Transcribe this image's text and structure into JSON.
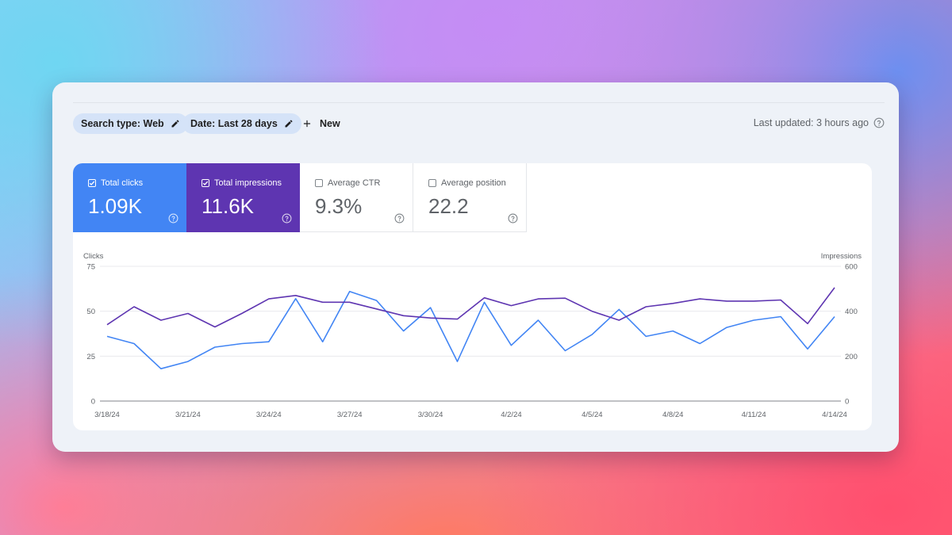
{
  "filters": {
    "search_type": "Search type: Web",
    "date": "Date: Last 28 days",
    "new_label": "New"
  },
  "status": {
    "last_updated": "Last updated: 3 hours ago"
  },
  "metrics": [
    {
      "label": "Total clicks",
      "value": "1.09K",
      "checked": true,
      "color": "#4285f4"
    },
    {
      "label": "Total impressions",
      "value": "11.6K",
      "checked": true,
      "color": "#5e35b1"
    },
    {
      "label": "Average CTR",
      "value": "9.3%",
      "checked": false
    },
    {
      "label": "Average position",
      "value": "22.2",
      "checked": false
    }
  ],
  "icons": {
    "pencil": "pencil-icon",
    "plus": "plus-icon",
    "help": "help-circle-icon",
    "checkbox": "checkbox-icon"
  },
  "chart_data": {
    "type": "line",
    "ylabel": "Clicks",
    "y2label": "Impressions",
    "ylim": [
      0,
      75
    ],
    "y2lim": [
      0,
      600
    ],
    "y_ticks": [
      "0",
      "25",
      "50",
      "75"
    ],
    "y2_ticks": [
      "0",
      "200",
      "400",
      "600"
    ],
    "x_ticks": [
      "3/18/24",
      "3/21/24",
      "3/24/24",
      "3/27/24",
      "3/30/24",
      "4/2/24",
      "4/5/24",
      "4/8/24",
      "4/11/24",
      "4/14/24"
    ],
    "grid": true,
    "series": [
      {
        "name": "Total clicks",
        "axis": "left",
        "color": "#4285f4",
        "values": [
          36,
          32,
          18,
          22,
          30,
          32,
          33,
          57,
          33,
          61,
          56,
          39,
          52,
          22,
          55,
          31,
          45,
          28,
          37,
          51,
          36,
          39,
          32,
          41,
          45,
          47,
          29,
          47
        ]
      },
      {
        "name": "Total impressions",
        "axis": "right",
        "color": "#5e35b1",
        "values": [
          340,
          420,
          360,
          390,
          330,
          390,
          455,
          470,
          440,
          440,
          410,
          380,
          370,
          365,
          460,
          425,
          455,
          458,
          400,
          360,
          420,
          435,
          455,
          445,
          445,
          450,
          345,
          505
        ]
      }
    ]
  }
}
